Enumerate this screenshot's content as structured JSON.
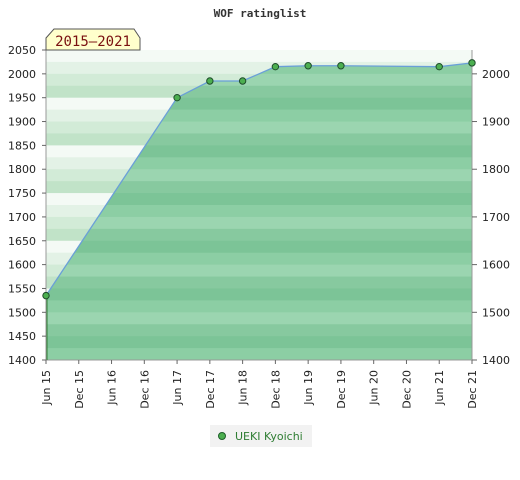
{
  "chart_data": {
    "type": "line",
    "title": "WOF ratinglist",
    "period_label": "2015–2021",
    "x_tick_labels": [
      "Jun 15",
      "Dec 15",
      "Jun 16",
      "Dec 16",
      "Jun 17",
      "Dec 17",
      "Jun 18",
      "Dec 18",
      "Jun 19",
      "Dec 19",
      "Jun 20",
      "Dec 20",
      "Jun 21",
      "Dec 21"
    ],
    "left_y_ticks": [
      1400,
      1450,
      1500,
      1550,
      1600,
      1650,
      1700,
      1750,
      1800,
      1850,
      1900,
      1950,
      2000,
      2050
    ],
    "right_y_ticks": [
      1400,
      1500,
      1600,
      1700,
      1800,
      1900,
      2000
    ],
    "ylim": [
      1400,
      2050
    ],
    "grid": true,
    "legend_position": "bottom-center",
    "series": [
      {
        "name": "UEKI Kyoichi",
        "color": "#4caf50",
        "line_color": "#6a9fd8",
        "points": [
          {
            "x": "Jun 15",
            "y": 1535
          },
          {
            "x": "Jun 17",
            "y": 1950
          },
          {
            "x": "Dec 17",
            "y": 1985
          },
          {
            "x": "Jun 18",
            "y": 1985
          },
          {
            "x": "Dec 18",
            "y": 2015
          },
          {
            "x": "Jun 19",
            "y": 2017
          },
          {
            "x": "Dec 19",
            "y": 2017
          },
          {
            "x": "Jun 21",
            "y": 2015
          },
          {
            "x": "Dec 21",
            "y": 2023
          }
        ]
      }
    ]
  }
}
